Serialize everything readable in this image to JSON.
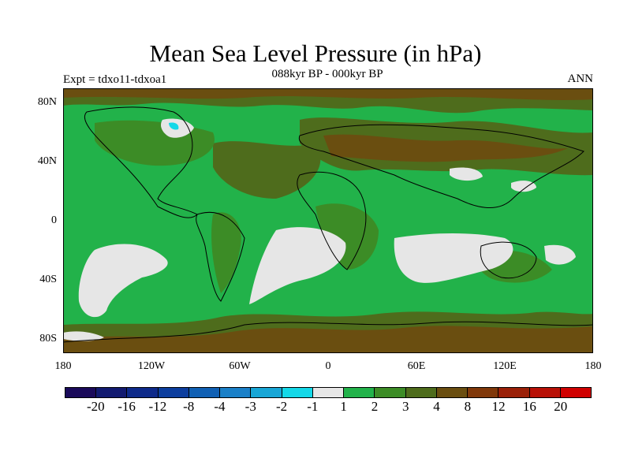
{
  "title": "Mean Sea Level Pressure (in hPa)",
  "subtitle": "088kyr BP - 000kyr BP",
  "expt_label": "Expt = tdxo11-tdxoa1",
  "season": "ANN",
  "y_axis": [
    "80N",
    "40N",
    "0",
    "40S",
    "80S"
  ],
  "x_axis": [
    "180",
    "120W",
    "60W",
    "0",
    "60E",
    "120E",
    "180"
  ],
  "colorbar": {
    "colors": [
      "#1a0a5a",
      "#121a70",
      "#0e2a8a",
      "#0c3e9e",
      "#1060b4",
      "#1a80c8",
      "#18a6d6",
      "#14d8e8",
      "#e6e6e6",
      "#22b24a",
      "#3c8c26",
      "#4e6c1c",
      "#6a4e10",
      "#80380a",
      "#9a2008",
      "#b81006",
      "#d00000"
    ],
    "labels": [
      "-20",
      "-16",
      "-12",
      "-8",
      "-4",
      "-3",
      "-2",
      "-1",
      "1",
      "2",
      "3",
      "4",
      "8",
      "12",
      "16",
      "20"
    ]
  },
  "map_colors": {
    "ocean_green": "#22b24a",
    "dark_green": "#3c8c26",
    "olive": "#4e6c1c",
    "brown": "#6a4e10",
    "light_gray": "#e6e6e6",
    "cyan": "#14d8e8"
  }
}
